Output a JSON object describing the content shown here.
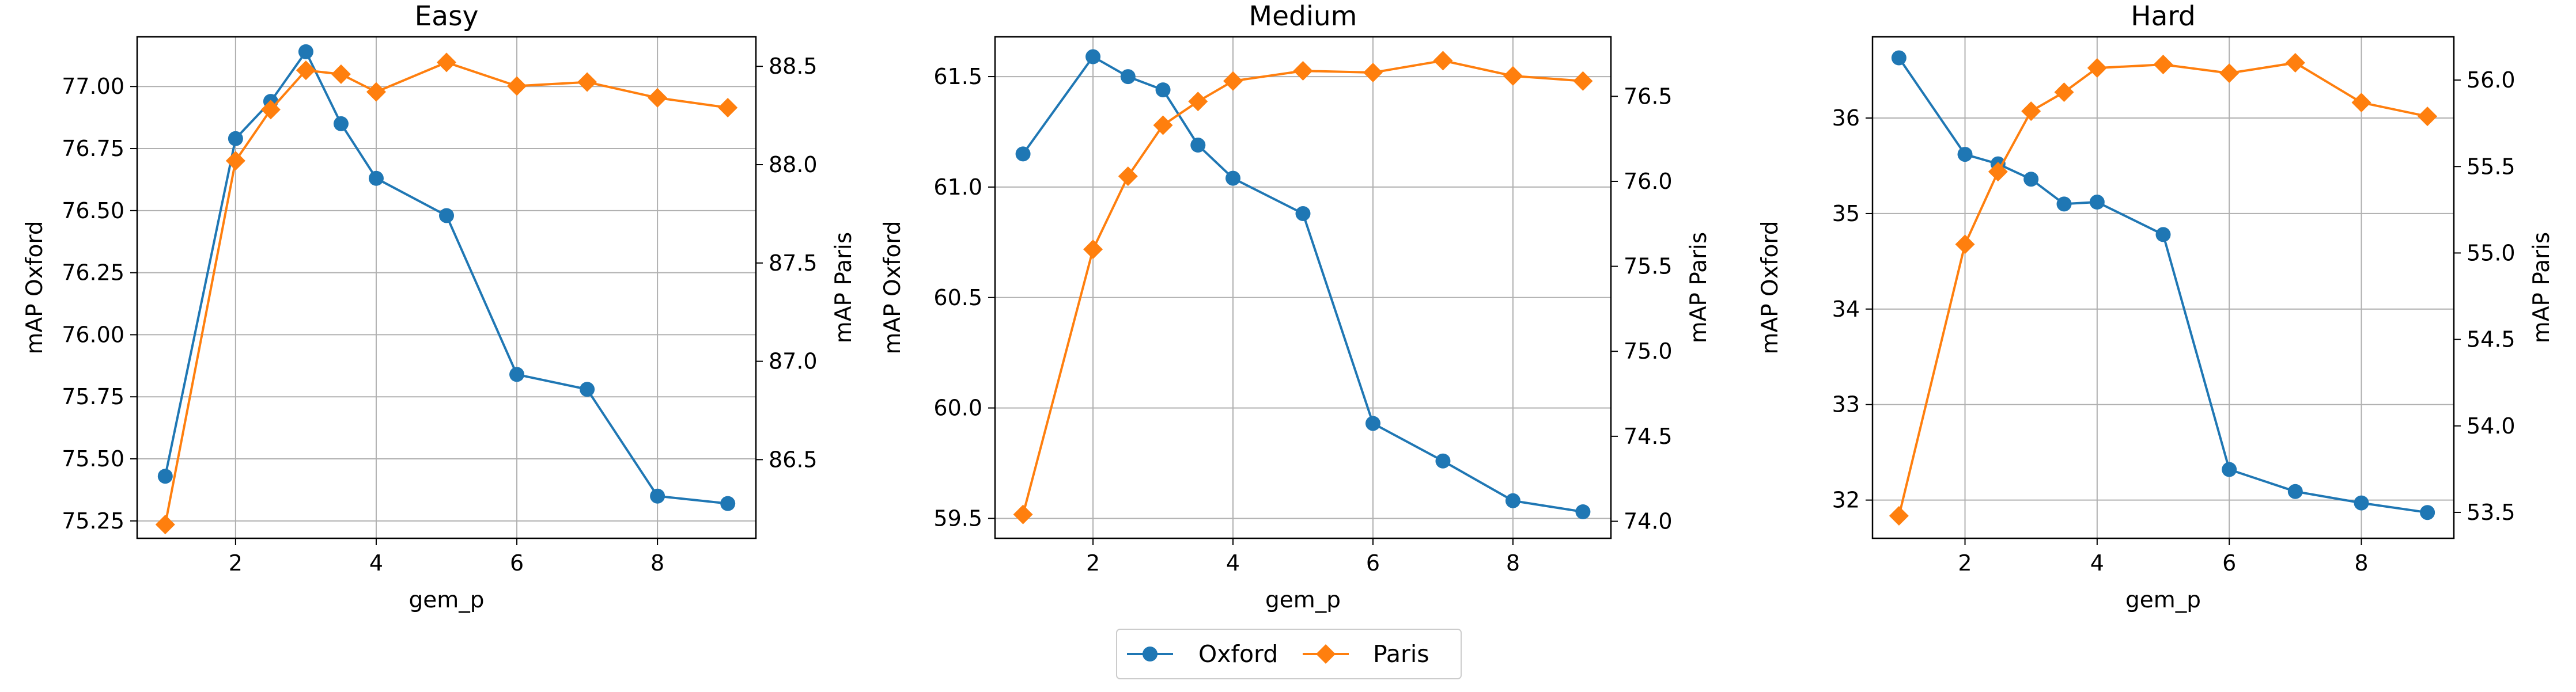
{
  "chart_data": [
    {
      "type": "line",
      "title": "Easy",
      "xlabel": "gem_p",
      "ylabel_left": "mAP Oxford",
      "ylabel_right": "mAP Paris",
      "xlim": [
        0.6,
        9.4
      ],
      "x_ticks": [
        2,
        4,
        6,
        8
      ],
      "ylim_left": [
        75.18,
        77.2
      ],
      "y_ticks_left": [
        "75.25",
        "75.50",
        "75.75",
        "76.00",
        "76.25",
        "76.50",
        "76.75",
        "77.00"
      ],
      "ylim_right": [
        86.1,
        88.65
      ],
      "y_ticks_right": [
        "86.5",
        "87.0",
        "87.5",
        "88.0",
        "88.5"
      ],
      "grid": true,
      "series": [
        {
          "name": "Oxford",
          "axis": "left",
          "color": "#1f77b4",
          "marker": "circle",
          "x": [
            1,
            2,
            2.5,
            3,
            3.5,
            4,
            5,
            6,
            7,
            8,
            9
          ],
          "y": [
            75.43,
            76.79,
            76.94,
            77.14,
            76.85,
            76.63,
            76.48,
            75.84,
            75.78,
            75.35,
            75.32
          ]
        },
        {
          "name": "Paris",
          "axis": "right",
          "color": "#ff7f0e",
          "marker": "diamond",
          "x": [
            1,
            2,
            2.5,
            3,
            3.5,
            4,
            5,
            6,
            7,
            8,
            9
          ],
          "y": [
            86.17,
            88.02,
            88.28,
            88.48,
            88.46,
            88.37,
            88.52,
            88.4,
            88.42,
            88.34,
            88.29
          ]
        }
      ]
    },
    {
      "type": "line",
      "title": "Medium",
      "xlabel": "gem_p",
      "ylabel_left": "mAP Oxford",
      "ylabel_right": "mAP Paris",
      "xlim": [
        0.6,
        9.4
      ],
      "x_ticks": [
        2,
        4,
        6,
        8
      ],
      "ylim_left": [
        59.41,
        61.68
      ],
      "y_ticks_left": [
        "59.5",
        "60.0",
        "60.5",
        "61.0",
        "61.5"
      ],
      "ylim_right": [
        73.9,
        76.85
      ],
      "y_ticks_right": [
        "74.0",
        "74.5",
        "75.0",
        "75.5",
        "76.0",
        "76.5"
      ],
      "grid": true,
      "series": [
        {
          "name": "Oxford",
          "axis": "left",
          "color": "#1f77b4",
          "marker": "circle",
          "x": [
            1,
            2,
            2.5,
            3,
            3.5,
            4,
            5,
            6,
            7,
            8,
            9
          ],
          "y": [
            61.15,
            61.59,
            61.5,
            61.44,
            61.19,
            61.04,
            60.88,
            59.93,
            59.76,
            59.58,
            59.53
          ]
        },
        {
          "name": "Paris",
          "axis": "right",
          "color": "#ff7f0e",
          "marker": "diamond",
          "x": [
            1,
            2,
            2.5,
            3,
            3.5,
            4,
            5,
            6,
            7,
            8,
            9
          ],
          "y": [
            74.04,
            75.6,
            76.03,
            76.33,
            76.47,
            76.59,
            76.65,
            76.64,
            76.71,
            76.62,
            76.59
          ]
        }
      ]
    },
    {
      "type": "line",
      "title": "Hard",
      "xlabel": "gem_p",
      "ylabel_left": "mAP Oxford",
      "ylabel_right": "mAP Paris",
      "xlim": [
        0.6,
        9.4
      ],
      "x_ticks": [
        2,
        4,
        6,
        8
      ],
      "ylim_left": [
        31.6,
        36.85
      ],
      "y_ticks_left": [
        "32",
        "33",
        "34",
        "35",
        "36"
      ],
      "ylim_right": [
        53.35,
        56.25
      ],
      "y_ticks_right": [
        "53.5",
        "54.0",
        "54.5",
        "55.0",
        "55.5",
        "56.0"
      ],
      "grid": true,
      "series": [
        {
          "name": "Oxford",
          "axis": "left",
          "color": "#1f77b4",
          "marker": "circle",
          "x": [
            1,
            2,
            2.5,
            3,
            3.5,
            4,
            5,
            6,
            7,
            8,
            9
          ],
          "y": [
            36.63,
            35.62,
            35.52,
            35.36,
            35.1,
            35.12,
            34.78,
            32.32,
            32.09,
            31.97,
            31.87
          ]
        },
        {
          "name": "Paris",
          "axis": "right",
          "color": "#ff7f0e",
          "marker": "diamond",
          "x": [
            1,
            2,
            2.5,
            3,
            3.5,
            4,
            5,
            6,
            7,
            8,
            9
          ],
          "y": [
            53.48,
            55.05,
            55.47,
            55.82,
            55.93,
            56.07,
            56.09,
            56.04,
            56.1,
            55.87,
            55.79
          ]
        }
      ]
    }
  ],
  "legend": {
    "placement": "bottom-center",
    "entries": [
      {
        "label": "Oxford",
        "color": "#1f77b4",
        "marker": "circle"
      },
      {
        "label": "Paris",
        "color": "#ff7f0e",
        "marker": "diamond"
      }
    ]
  }
}
